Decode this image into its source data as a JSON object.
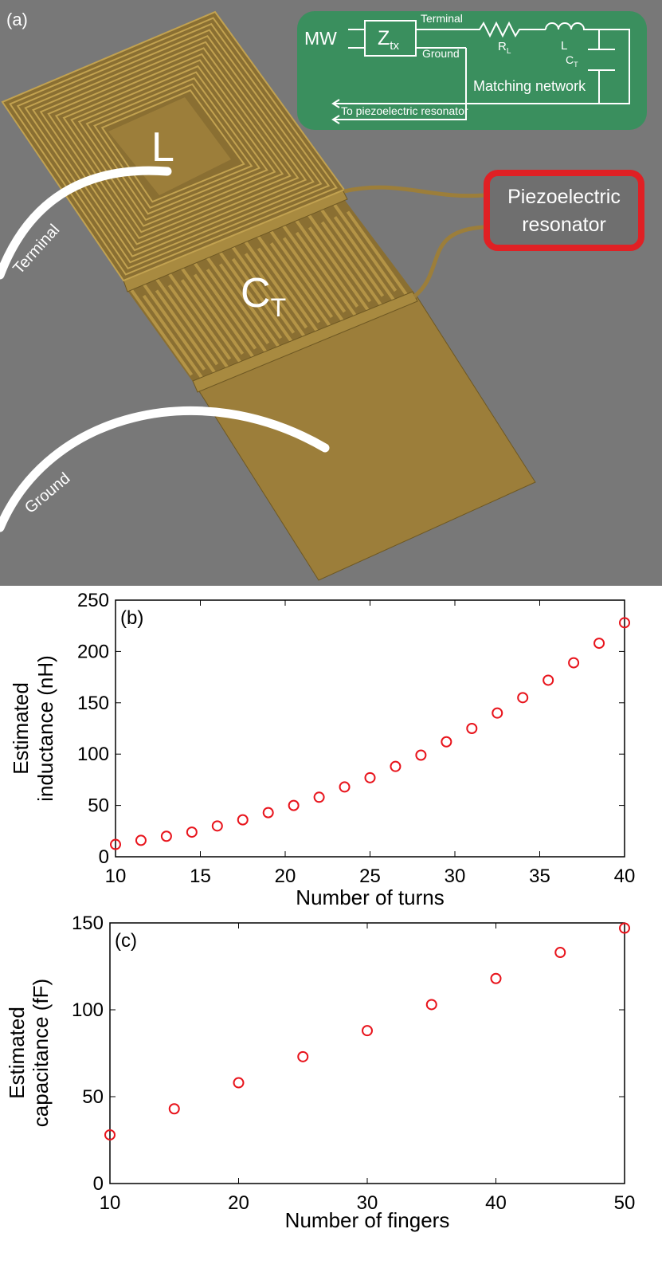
{
  "panel_a": {
    "label": "(a)",
    "inductor_label": "L",
    "capacitor_label": {
      "text": "C",
      "sub": "T"
    },
    "terminal": "Terminal",
    "ground": "Ground",
    "resonator": [
      "Piezoelectric",
      "resonator"
    ],
    "circuit": {
      "source": "MW",
      "impedance": {
        "text": "Z",
        "sub": "tx"
      },
      "terminal": "Terminal",
      "ground": "Ground",
      "resistor": {
        "text": "R",
        "sub": "L"
      },
      "inductor": "L",
      "capacitor": {
        "text": "C",
        "sub": "T"
      },
      "network": "Matching network",
      "output": "To piezoelectric resonator"
    }
  },
  "chart_data": [
    {
      "type": "scatter",
      "title": "(b)",
      "xlabel": "Number of turns",
      "ylabel": [
        "Estimated",
        "inductance (nH)"
      ],
      "color": "#e8141c",
      "x": [
        10,
        11.5,
        13,
        14.5,
        16,
        17.5,
        19,
        20.5,
        22,
        23.5,
        25,
        26.5,
        28,
        29.5,
        31,
        32.5,
        34,
        35.5,
        37,
        38.5,
        40
      ],
      "values": [
        12,
        16,
        20,
        24,
        30,
        36,
        43,
        50,
        58,
        68,
        77,
        88,
        99,
        112,
        125,
        140,
        155,
        172,
        189,
        208,
        228
      ],
      "xlim": [
        10,
        40
      ],
      "ylim": [
        0,
        250
      ],
      "xticks": [
        10,
        15,
        20,
        25,
        30,
        35,
        40
      ],
      "yticks": [
        0,
        50,
        100,
        150,
        200,
        250
      ],
      "grid": false
    },
    {
      "type": "scatter",
      "title": "(c)",
      "xlabel": "Number of fingers",
      "ylabel": [
        "Estimated",
        "capacitance (fF)"
      ],
      "color": "#e8141c",
      "x": [
        10,
        15,
        20,
        25,
        30,
        35,
        40,
        45,
        50
      ],
      "values": [
        28,
        43,
        58,
        73,
        88,
        103,
        118,
        133,
        147
      ],
      "xlim": [
        10,
        50
      ],
      "ylim": [
        0,
        150
      ],
      "xticks": [
        10,
        20,
        30,
        40,
        50
      ],
      "yticks": [
        0,
        50,
        100,
        150
      ],
      "grid": false
    }
  ]
}
